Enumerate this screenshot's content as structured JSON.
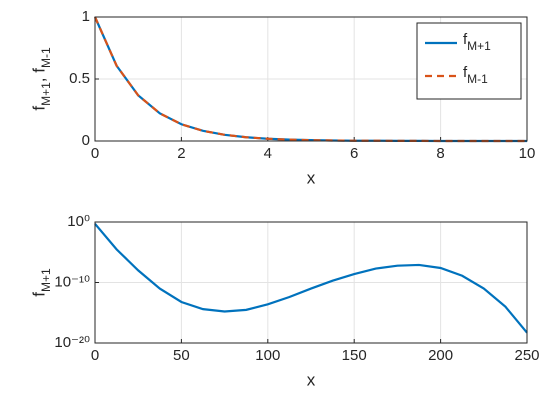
{
  "chart_data": [
    {
      "type": "line",
      "xlabel": "x",
      "ylabel": "fM+1, fM-1",
      "x": [
        0,
        0.5,
        1,
        1.5,
        2,
        2.5,
        3,
        3.5,
        4,
        4.5,
        5,
        5.5,
        6,
        6.5,
        7,
        7.5,
        8,
        8.5,
        9,
        9.5,
        10
      ],
      "series": [
        {
          "name": "fM+1",
          "color": "#0072bd",
          "linestyle": "solid",
          "values": [
            1,
            0.607,
            0.368,
            0.223,
            0.135,
            0.082,
            0.05,
            0.03,
            0.018,
            0.011,
            0.007,
            0.004,
            0.002,
            0.002,
            0.001,
            0.001,
            0,
            0,
            0,
            0,
            0
          ]
        },
        {
          "name": "fM-1",
          "color": "#d95319",
          "linestyle": "dashed",
          "values": [
            1,
            0.607,
            0.368,
            0.223,
            0.135,
            0.082,
            0.05,
            0.03,
            0.018,
            0.011,
            0.007,
            0.004,
            0.002,
            0.002,
            0.001,
            0.001,
            0,
            0,
            0,
            0,
            0
          ]
        }
      ],
      "xlim": [
        0,
        10
      ],
      "xticks": [
        0,
        2,
        4,
        6,
        8,
        10
      ],
      "ylim": [
        0,
        1
      ],
      "yticks": [
        0,
        0.5,
        1
      ],
      "grid": true,
      "legend": "top-right"
    },
    {
      "type": "line",
      "xlabel": "x",
      "ylabel": "fM+1",
      "yscale": "log",
      "x": [
        0,
        12.5,
        25,
        37.5,
        50,
        62.5,
        75,
        87.5,
        100,
        112.5,
        125,
        137.5,
        150,
        162.5,
        175,
        187.5,
        200,
        212.5,
        225,
        237.5,
        250
      ],
      "series": [
        {
          "name": "fM+1",
          "color": "#0072bd",
          "linestyle": "solid",
          "values": [
            0.5,
            3e-05,
            1e-08,
            1e-11,
            6e-14,
            4e-15,
            1.6e-15,
            3e-15,
            2.5e-14,
            4e-13,
            1e-11,
            2e-10,
            2.5e-09,
            2e-08,
            6e-08,
            8e-08,
            2.5e-08,
            1.3e-09,
            1e-11,
            1e-14,
            5e-19
          ]
        }
      ],
      "xlim": [
        0,
        250
      ],
      "xticks": [
        0,
        50,
        100,
        150,
        200,
        250
      ],
      "ylim": [
        1e-20,
        1
      ],
      "yticks": [
        {
          "value": 1e-20,
          "label": "10⁻²⁰"
        },
        {
          "value": 1e-10,
          "label": "10⁻¹⁰"
        },
        {
          "value": 1,
          "label": "10⁰"
        }
      ],
      "grid": true
    }
  ]
}
